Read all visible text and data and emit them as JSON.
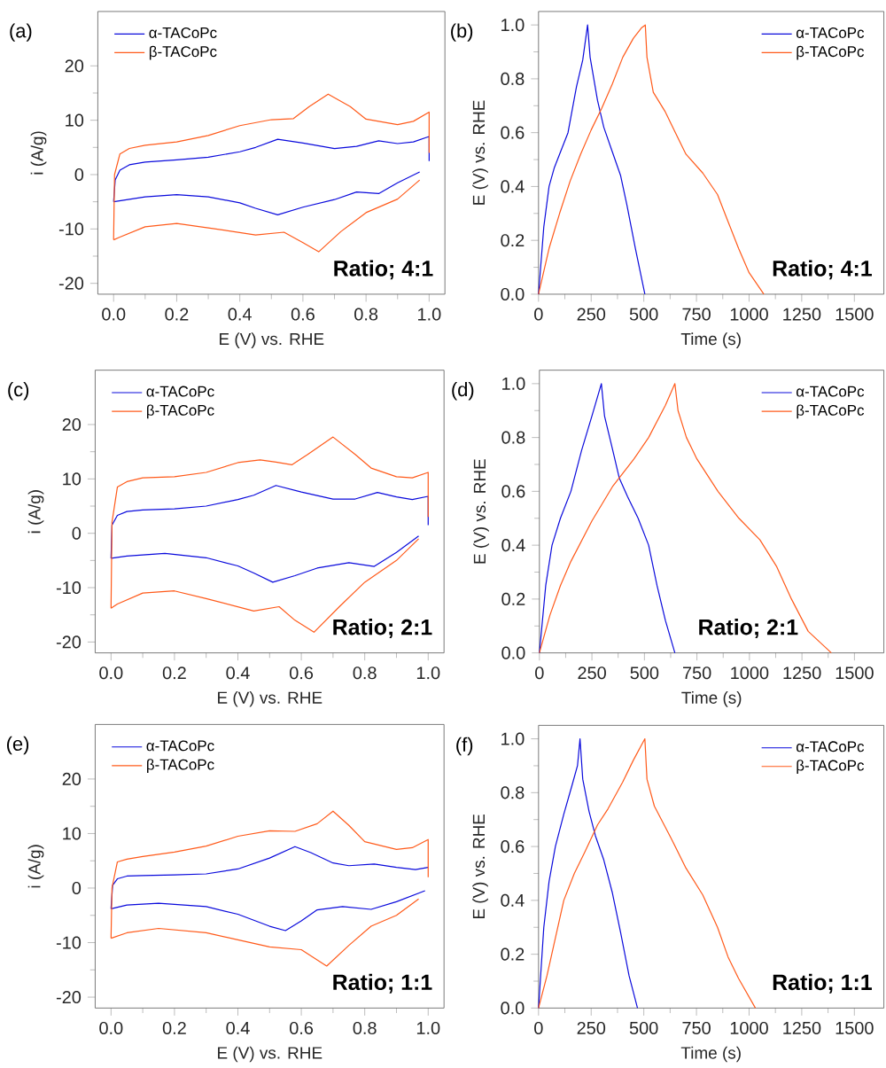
{
  "chart_data": [
    {
      "type": "line",
      "xlabel": "E (V) vs. RHE",
      "ylabel": "i (A/g)",
      "xlim": [
        -0.05,
        1.05
      ],
      "ylim": [
        -22,
        30
      ],
      "legend": "top left",
      "xticks": [
        {
          "value": 0,
          "label": "0.0"
        },
        {
          "value": 0.2,
          "label": "0.2"
        },
        {
          "value": 0.4,
          "label": "0.4"
        },
        {
          "value": 0.6,
          "label": "0.6"
        },
        {
          "value": 0.8,
          "label": "0.8"
        },
        {
          "value": 1,
          "label": "1.0"
        }
      ],
      "yticks": [
        -20,
        -10,
        0,
        10,
        20
      ],
      "annotations": [
        "(a)",
        "Ratio; 4:1"
      ],
      "series": [
        {
          "name": "α-TACoPc",
          "color": "#0a0adc",
          "x": [
            0.0,
            0.005,
            0.02,
            0.05,
            0.1,
            0.2,
            0.3,
            0.4,
            0.45,
            0.52,
            0.6,
            0.7,
            0.77,
            0.84,
            0.9,
            0.95,
            1.0,
            1.0
          ],
          "values": [
            -5,
            -1,
            0.8,
            1.8,
            2.3,
            2.7,
            3.2,
            4.2,
            5.0,
            6.5,
            5.8,
            4.8,
            5.2,
            6.2,
            5.7,
            6.0,
            7.0,
            2.5
          ]
        },
        {
          "color": "#0a0adc",
          "x": [
            0.97,
            0.9,
            0.84,
            0.77,
            0.7,
            0.6,
            0.52,
            0.45,
            0.4,
            0.3,
            0.2,
            0.1,
            0.0
          ],
          "values": [
            0.5,
            -1.5,
            -3.5,
            -3.2,
            -4.6,
            -6.0,
            -7.4,
            -6.2,
            -5.2,
            -4.1,
            -3.7,
            -4.1,
            -5.0
          ]
        },
        {
          "name": "β-TACoPc",
          "color": "#ff5a1a",
          "x": [
            0.0,
            0.003,
            0.02,
            0.05,
            0.1,
            0.2,
            0.3,
            0.4,
            0.5,
            0.57,
            0.62,
            0.68,
            0.75,
            0.8,
            0.9,
            0.95,
            1.0,
            1.0
          ],
          "values": [
            -12,
            0,
            3.8,
            4.8,
            5.4,
            6.0,
            7.2,
            9.0,
            10.1,
            10.3,
            12.5,
            14.8,
            12.5,
            10.2,
            9.2,
            9.8,
            11.5,
            4
          ]
        },
        {
          "color": "#ff5a1a",
          "x": [
            0.97,
            0.9,
            0.8,
            0.72,
            0.65,
            0.6,
            0.54,
            0.45,
            0.3,
            0.2,
            0.1,
            0.02,
            0.0
          ],
          "values": [
            -1,
            -4.5,
            -7,
            -10.5,
            -14.2,
            -12.5,
            -10.6,
            -11.1,
            -9.8,
            -9.0,
            -9.6,
            -11.5,
            -12
          ]
        }
      ]
    },
    {
      "type": "line",
      "xlabel": "Time (s)",
      "ylabel": "E (V) vs. RHE",
      "xlim": [
        0,
        1640
      ],
      "ylim": [
        0,
        1.05
      ],
      "legend": "top right",
      "xticks": [
        0,
        250,
        500,
        750,
        1000,
        1250,
        1500
      ],
      "yticks": [
        {
          "value": 0,
          "label": "0.0"
        },
        {
          "value": 0.2,
          "label": "0.2"
        },
        {
          "value": 0.4,
          "label": "0.4"
        },
        {
          "value": 0.6,
          "label": "0.6"
        },
        {
          "value": 0.8,
          "label": "0.8"
        },
        {
          "value": 1,
          "label": "1.0"
        }
      ],
      "annotations": [
        "(b)",
        "Ratio; 4:1"
      ],
      "series": [
        {
          "name": "α-TACoPc",
          "color": "#0a0adc",
          "x": [
            0,
            25,
            50,
            75,
            100,
            140,
            180,
            210,
            233,
            245,
            280,
            310,
            350,
            390,
            420,
            460,
            505
          ],
          "values": [
            0,
            0.25,
            0.4,
            0.47,
            0.52,
            0.6,
            0.77,
            0.87,
            1.0,
            0.88,
            0.72,
            0.62,
            0.53,
            0.44,
            0.33,
            0.17,
            0.0
          ]
        },
        {
          "name": "β-TACoPc",
          "color": "#ff5a1a",
          "x": [
            0,
            50,
            100,
            150,
            200,
            250,
            300,
            350,
            400,
            450,
            490,
            507,
            515,
            545,
            600,
            650,
            700,
            780,
            850,
            900,
            950,
            1000,
            1070
          ],
          "values": [
            0,
            0.17,
            0.3,
            0.42,
            0.52,
            0.61,
            0.69,
            0.78,
            0.88,
            0.95,
            0.99,
            1.0,
            0.88,
            0.75,
            0.68,
            0.6,
            0.52,
            0.45,
            0.37,
            0.27,
            0.17,
            0.08,
            0.0
          ]
        }
      ]
    },
    {
      "type": "line",
      "xlabel": "E (V) vs. RHE",
      "ylabel": "i (A/g)",
      "xlim": [
        -0.05,
        1.05
      ],
      "ylim": [
        -22,
        30
      ],
      "legend": "top left",
      "xticks": [
        {
          "value": 0,
          "label": "0.0"
        },
        {
          "value": 0.2,
          "label": "0.2"
        },
        {
          "value": 0.4,
          "label": "0.4"
        },
        {
          "value": 0.6,
          "label": "0.6"
        },
        {
          "value": 0.8,
          "label": "0.8"
        },
        {
          "value": 1,
          "label": "1.0"
        }
      ],
      "yticks": [
        -20,
        -10,
        0,
        10,
        20
      ],
      "annotations": [
        "(c)",
        "Ratio; 2:1"
      ],
      "series": [
        {
          "name": "α-TACoPc",
          "color": "#0a0adc",
          "x": [
            0.0,
            0.003,
            0.02,
            0.05,
            0.1,
            0.2,
            0.3,
            0.4,
            0.45,
            0.52,
            0.6,
            0.7,
            0.77,
            0.84,
            0.9,
            0.95,
            1.0,
            1.0
          ],
          "values": [
            -4.6,
            1.5,
            3.3,
            4.0,
            4.3,
            4.5,
            5.0,
            6.2,
            7.0,
            8.8,
            7.6,
            6.3,
            6.3,
            7.5,
            6.7,
            6.2,
            6.8,
            1.5
          ]
        },
        {
          "color": "#0a0adc",
          "x": [
            0.97,
            0.9,
            0.83,
            0.75,
            0.65,
            0.58,
            0.51,
            0.45,
            0.4,
            0.3,
            0.17,
            0.05,
            0.0
          ],
          "values": [
            -0.5,
            -3.5,
            -6.1,
            -5.4,
            -6.4,
            -7.8,
            -9.0,
            -7.3,
            -6.0,
            -4.5,
            -3.7,
            -4.2,
            -4.6
          ]
        },
        {
          "name": "β-TACoPc",
          "color": "#ff5a1a",
          "x": [
            0.0,
            0.003,
            0.02,
            0.05,
            0.1,
            0.2,
            0.3,
            0.4,
            0.47,
            0.52,
            0.57,
            0.62,
            0.7,
            0.77,
            0.82,
            0.9,
            0.95,
            1.0,
            1.0
          ],
          "values": [
            -13.8,
            2,
            8.5,
            9.5,
            10.2,
            10.4,
            11.2,
            13.0,
            13.5,
            13.1,
            12.6,
            14.5,
            17.7,
            14.5,
            12,
            10.4,
            10.2,
            11.2,
            3
          ]
        },
        {
          "color": "#ff5a1a",
          "x": [
            0.97,
            0.9,
            0.8,
            0.72,
            0.64,
            0.58,
            0.53,
            0.45,
            0.3,
            0.2,
            0.1,
            0.02,
            0.0
          ],
          "values": [
            -1,
            -5,
            -9,
            -13.5,
            -18.2,
            -16,
            -13.5,
            -14.3,
            -12,
            -10.6,
            -11,
            -13,
            -13.8
          ]
        }
      ]
    },
    {
      "type": "line",
      "xlabel": "Time (s)",
      "ylabel": "E (V) vs. RHE",
      "xlim": [
        0,
        1640
      ],
      "ylim": [
        0,
        1.05
      ],
      "legend": "top right",
      "xticks": [
        0,
        250,
        500,
        750,
        1000,
        1250,
        1500
      ],
      "yticks": [
        {
          "value": 0,
          "label": "0.0"
        },
        {
          "value": 0.2,
          "label": "0.2"
        },
        {
          "value": 0.4,
          "label": "0.4"
        },
        {
          "value": 0.6,
          "label": "0.6"
        },
        {
          "value": 0.8,
          "label": "0.8"
        },
        {
          "value": 1,
          "label": "1.0"
        }
      ],
      "annotations": [
        "(d)",
        "Ratio; 2:1"
      ],
      "series": [
        {
          "name": "α-TACoPc",
          "color": "#0a0adc",
          "x": [
            0,
            30,
            60,
            100,
            150,
            200,
            250,
            295,
            310,
            350,
            380,
            420,
            470,
            520,
            560,
            600,
            645
          ],
          "values": [
            0,
            0.25,
            0.4,
            0.5,
            0.6,
            0.75,
            0.88,
            1.0,
            0.88,
            0.75,
            0.65,
            0.58,
            0.5,
            0.4,
            0.25,
            0.12,
            0.0
          ]
        },
        {
          "name": "β-TACoPc",
          "color": "#ff5a1a",
          "x": [
            0,
            50,
            100,
            150,
            250,
            350,
            450,
            520,
            600,
            645,
            660,
            700,
            750,
            850,
            950,
            1050,
            1130,
            1200,
            1280,
            1390
          ],
          "values": [
            0,
            0.14,
            0.25,
            0.34,
            0.49,
            0.62,
            0.72,
            0.8,
            0.92,
            1.0,
            0.9,
            0.8,
            0.72,
            0.6,
            0.5,
            0.42,
            0.32,
            0.2,
            0.08,
            0.0
          ]
        }
      ]
    },
    {
      "type": "line",
      "xlabel": "E (V) vs. RHE",
      "ylabel": "i (A/g)",
      "xlim": [
        -0.05,
        1.05
      ],
      "ylim": [
        -22,
        30
      ],
      "legend": "top left",
      "xticks": [
        {
          "value": 0,
          "label": "0.0"
        },
        {
          "value": 0.2,
          "label": "0.2"
        },
        {
          "value": 0.4,
          "label": "0.4"
        },
        {
          "value": 0.6,
          "label": "0.6"
        },
        {
          "value": 0.8,
          "label": "0.8"
        },
        {
          "value": 1,
          "label": "1.0"
        }
      ],
      "yticks": [
        -20,
        -10,
        0,
        10,
        20
      ],
      "annotations": [
        "(e)",
        "Ratio; 1:1"
      ],
      "series": [
        {
          "name": "α-TACoPc",
          "color": "#0a0adc",
          "x": [
            0.0,
            0.005,
            0.02,
            0.05,
            0.1,
            0.2,
            0.3,
            0.4,
            0.5,
            0.58,
            0.63,
            0.7,
            0.75,
            0.83,
            0.9,
            0.96,
            1.0
          ],
          "values": [
            -3.8,
            0.5,
            1.7,
            2.2,
            2.3,
            2.4,
            2.6,
            3.5,
            5.5,
            7.6,
            6.5,
            4.6,
            4.1,
            4.4,
            3.8,
            3.4,
            3.8
          ]
        },
        {
          "color": "#0a0adc",
          "x": [
            0.99,
            0.9,
            0.82,
            0.73,
            0.65,
            0.6,
            0.55,
            0.5,
            0.4,
            0.3,
            0.15,
            0.05,
            0.0
          ],
          "values": [
            -0.5,
            -2.5,
            -3.9,
            -3.4,
            -4.0,
            -6.0,
            -7.8,
            -7.0,
            -4.8,
            -3.4,
            -2.8,
            -3.1,
            -3.8
          ]
        },
        {
          "name": "β-TACoPc",
          "color": "#ff5a1a",
          "x": [
            0.0,
            0.003,
            0.02,
            0.05,
            0.1,
            0.2,
            0.3,
            0.4,
            0.5,
            0.58,
            0.65,
            0.7,
            0.75,
            0.8,
            0.9,
            0.95,
            1.0,
            1.0
          ],
          "values": [
            -9.2,
            0,
            4.8,
            5.3,
            5.8,
            6.6,
            7.7,
            9.5,
            10.5,
            10.4,
            11.8,
            14.1,
            11.5,
            8.5,
            7.1,
            7.4,
            8.9,
            2
          ]
        },
        {
          "color": "#ff5a1a",
          "x": [
            0.97,
            0.9,
            0.82,
            0.75,
            0.68,
            0.6,
            0.5,
            0.4,
            0.3,
            0.15,
            0.05,
            0.0
          ],
          "values": [
            -2,
            -5,
            -7,
            -10.5,
            -14.3,
            -11.3,
            -10.8,
            -9.5,
            -8.2,
            -7.4,
            -8.2,
            -9.2
          ]
        }
      ]
    },
    {
      "type": "line",
      "xlabel": "Time (s)",
      "ylabel": "E (V) vs. RHE",
      "xlim": [
        0,
        1640
      ],
      "ylim": [
        0,
        1.05
      ],
      "legend": "top right",
      "xticks": [
        0,
        250,
        500,
        750,
        1000,
        1250,
        1500
      ],
      "yticks": [
        {
          "value": 0,
          "label": "0.0"
        },
        {
          "value": 0.2,
          "label": "0.2"
        },
        {
          "value": 0.4,
          "label": "0.4"
        },
        {
          "value": 0.6,
          "label": "0.6"
        },
        {
          "value": 0.8,
          "label": "0.8"
        },
        {
          "value": 1,
          "label": "1.0"
        }
      ],
      "annotations": [
        "(f)",
        "Ratio; 1:1"
      ],
      "series": [
        {
          "name": "α-TACoPc",
          "color": "#0a0adc",
          "x": [
            0,
            25,
            50,
            80,
            120,
            160,
            185,
            197,
            210,
            240,
            270,
            310,
            350,
            390,
            430,
            470
          ],
          "values": [
            0,
            0.3,
            0.47,
            0.6,
            0.72,
            0.83,
            0.9,
            1.0,
            0.85,
            0.73,
            0.64,
            0.55,
            0.43,
            0.28,
            0.12,
            0.0
          ]
        },
        {
          "name": "β-TACoPc",
          "color": "#ff5a1a",
          "x": [
            0,
            40,
            80,
            120,
            170,
            220,
            280,
            330,
            400,
            450,
            505,
            515,
            550,
            590,
            630,
            700,
            780,
            850,
            900,
            950,
            1030
          ],
          "values": [
            0,
            0.12,
            0.26,
            0.4,
            0.5,
            0.58,
            0.68,
            0.74,
            0.84,
            0.92,
            1.0,
            0.85,
            0.75,
            0.69,
            0.63,
            0.52,
            0.42,
            0.3,
            0.19,
            0.11,
            0.0
          ]
        }
      ]
    }
  ]
}
